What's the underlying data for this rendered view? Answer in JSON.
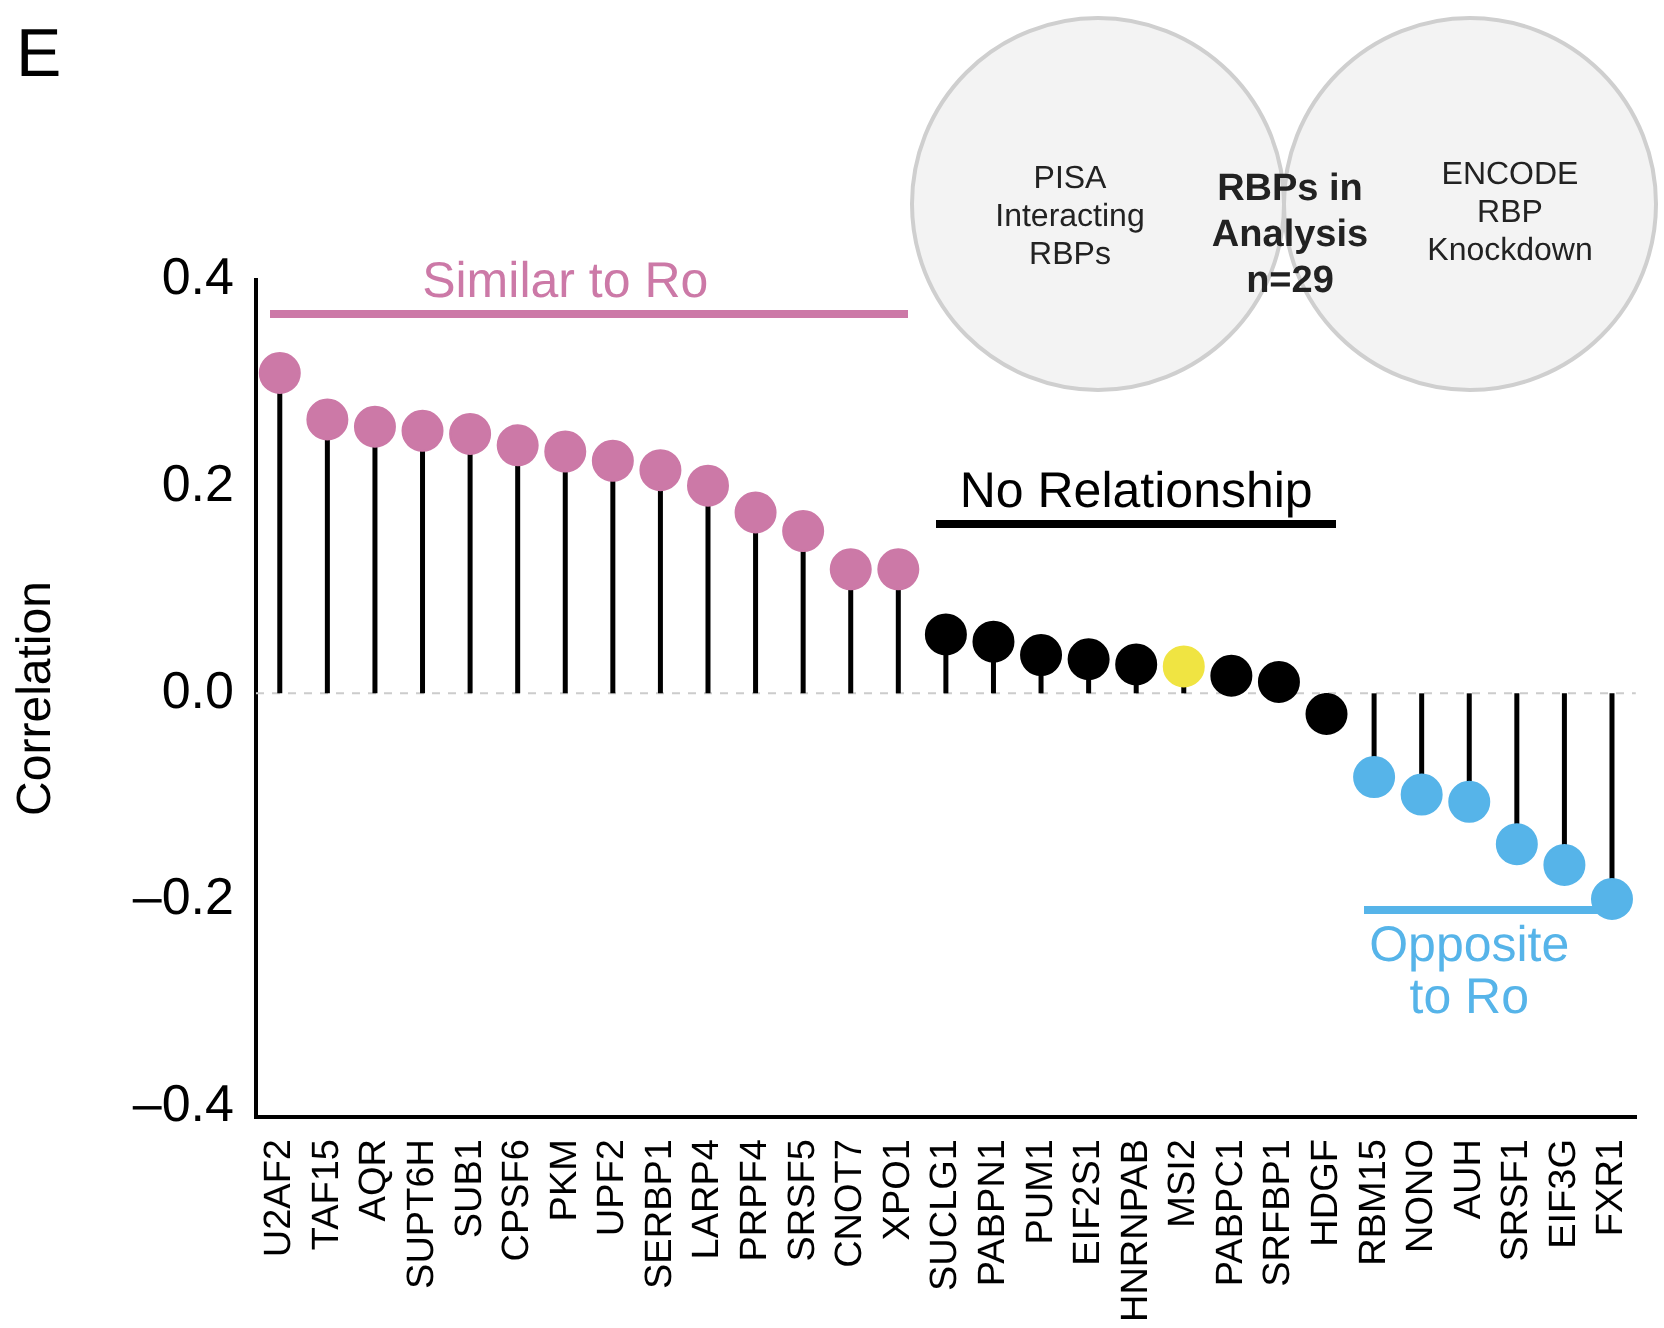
{
  "chart_data": {
    "type": "lollipop",
    "title": "E",
    "ylabel": "Correlation",
    "categories": [
      "U2AF2",
      "TAF15",
      "AQR",
      "SUPT6H",
      "SUB1",
      "CPSF6",
      "PKM",
      "UPF2",
      "SERBP1",
      "LARP4",
      "PRPF4",
      "SRSF5",
      "CNOT7",
      "XPO1",
      "SUCLG1",
      "PABPN1",
      "PUM1",
      "EIF2S1",
      "HNRNPAB",
      "MSI2",
      "PABPC1",
      "SRFBP1",
      "HDGF",
      "RBM15",
      "NONO",
      "AUH",
      "SRSF1",
      "EIF3G",
      "FXR1"
    ],
    "values": [
      0.31,
      0.265,
      0.258,
      0.254,
      0.251,
      0.24,
      0.234,
      0.225,
      0.216,
      0.201,
      0.175,
      0.157,
      0.12,
      0.12,
      0.057,
      0.05,
      0.037,
      0.033,
      0.028,
      0.026,
      0.017,
      0.011,
      -0.02,
      -0.081,
      -0.098,
      -0.105,
      -0.146,
      -0.166,
      -0.199
    ],
    "colors": [
      "#cc79a7",
      "#cc79a7",
      "#cc79a7",
      "#cc79a7",
      "#cc79a7",
      "#cc79a7",
      "#cc79a7",
      "#cc79a7",
      "#cc79a7",
      "#cc79a7",
      "#cc79a7",
      "#cc79a7",
      "#cc79a7",
      "#cc79a7",
      "#000000",
      "#000000",
      "#000000",
      "#000000",
      "#000000",
      "#f0e442",
      "#000000",
      "#000000",
      "#000000",
      "#56b4e9",
      "#56b4e9",
      "#56b4e9",
      "#56b4e9",
      "#56b4e9",
      "#56b4e9"
    ],
    "ylim": [
      -0.41,
      0.4
    ],
    "yticks": [
      {
        "value": -0.4,
        "label": "–0.4"
      },
      {
        "value": -0.2,
        "label": "–0.2"
      },
      {
        "value": 0,
        "label": "0.0"
      },
      0.2,
      0.4
    ],
    "ref_lines": [
      {
        "axis": "y",
        "value": 0,
        "color": "#cccccc",
        "line_style": "dashed"
      }
    ],
    "grid": false,
    "legend": false,
    "marker": "circle",
    "annotations": [
      "PISA Interacting RBPs",
      "RBPs in Analysis n=29",
      "ENCODE RBP Knockdown",
      "Similar to Ro",
      "No Relationship",
      "Opposite to Ro"
    ]
  }
}
